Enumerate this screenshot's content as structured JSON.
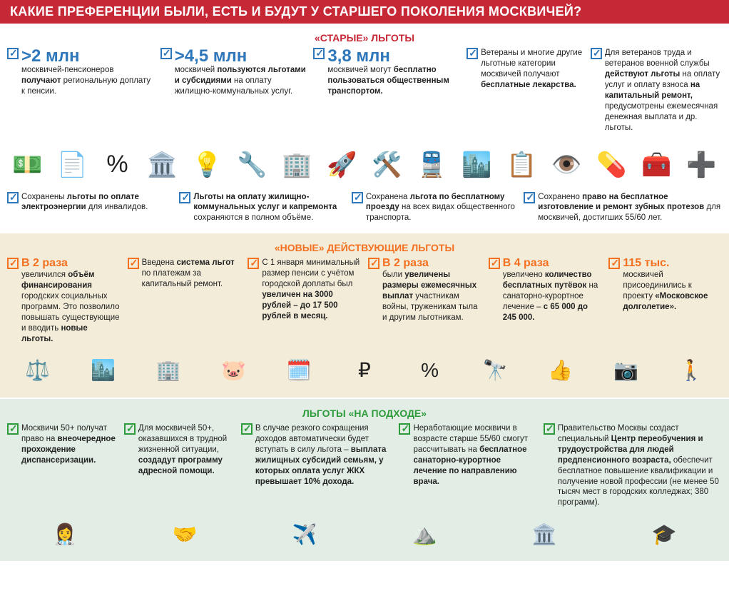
{
  "colors": {
    "header_bg": "#c72836",
    "blue": "#2e77bb",
    "orange": "#f37021",
    "green": "#2e9b3b",
    "section_white": "#ffffff",
    "section_tan": "#f3ecd9",
    "section_mint": "#e2ede5"
  },
  "header": "КАКИЕ ПРЕФЕРЕНЦИИ БЫЛИ, ЕСТЬ И БУДУТ У СТАРШЕГО ПОКОЛЕНИЯ МОСКВИЧЕЙ?",
  "sections": {
    "old": {
      "title": "«СТАРЫЕ» ЛЬГОТЫ",
      "top_items": [
        {
          "stat": ">2 млн",
          "text_before": "москвичей-пенсионеров ",
          "bold": "получают",
          "text_after": " региональную доплату к пенсии."
        },
        {
          "stat": ">4,5 млн",
          "text_before": "москвичей ",
          "bold": "пользуются льготами и субсидиями",
          "text_after": " на оплату жилищно-коммунальных услуг."
        },
        {
          "stat": "3,8 млн",
          "text_before": "москвичей могут ",
          "bold": "бесплатно пользоваться общественным транспортом.",
          "text_after": ""
        },
        {
          "stat": "",
          "text_before": "Ветераны и многие другие льготные категории москвичей получают ",
          "bold": "бесплатные лекарства.",
          "text_after": ""
        },
        {
          "stat": "",
          "text_before": "Для ветеранов труда и ветеранов военной службы ",
          "bold": "действуют льготы",
          "text_after": " на оплату услуг и оплату взноса ",
          "bold2": "на капитальный ремонт,",
          "text_after2": " предусмотрены ежемесячная денежная выплата и др. льготы."
        }
      ],
      "bottom_items": [
        {
          "text_before": "Сохранены ",
          "bold": "льготы по оплате электроэнергии",
          "text_after": " для инвалидов."
        },
        {
          "text_before": "",
          "bold": "Льготы на оплату жилищно-коммунальных услуг и капремонта",
          "text_after": " сохраняются в полном объёме."
        },
        {
          "text_before": "Сохранена ",
          "bold": "льгота по бесплатному проезду",
          "text_after": " на всех видах общественного транспорта."
        },
        {
          "text_before": "Сохранено ",
          "bold": "право на бесплатное изготовление и ремонт зубных протезов",
          "text_after": " для москвичей, достигших 55/60 лет."
        }
      ],
      "icons": [
        "💵",
        "📄",
        "%",
        "🏛️",
        "💡",
        "🔧",
        "🏢",
        "🚀",
        "🛠️",
        "🚆",
        "🏙️",
        "📋",
        "👁️",
        "💊",
        "🧰",
        "➕"
      ]
    },
    "new": {
      "title": "«НОВЫЕ» ДЕЙСТВУЮЩИЕ ЛЬГОТЫ",
      "items": [
        {
          "stat": "В 2 раза",
          "text_before": "увеличился ",
          "bold": "объём финансирования",
          "text_after": " городских социальных программ. Это позволило повышать существующие и вводить ",
          "bold2": "новые льготы."
        },
        {
          "stat": "",
          "text_before": "Введена ",
          "bold": "система льгот",
          "text_after": " по платежам за капитальный ремонт."
        },
        {
          "stat": "",
          "text_before": "С 1 января минимальный размер пенсии с учётом городской доплаты был ",
          "bold": "увеличен на 3000 рублей – до 17 500 рублей в месяц.",
          "text_after": ""
        },
        {
          "stat": "В 2 раза",
          "text_before": "были ",
          "bold": "увеличены размеры ежемесячных выплат",
          "text_after": " участникам войны, труженикам тыла и другим льготникам."
        },
        {
          "stat": "В 4 раза",
          "text_before": "увеличено ",
          "bold": "количество бесплатных путёвок",
          "text_after": " на санаторно-курортное лечение – ",
          "bold2": "с 65 000 до 245 000."
        },
        {
          "stat": "115 тыс.",
          "text_before": "москвичей присоединились к проекту ",
          "bold": "«Московское долголетие».",
          "text_after": ""
        }
      ],
      "icons": [
        "⚖️",
        "🏙️",
        "🏢",
        "🐷",
        "🗓️",
        "₽",
        "%",
        "🔭",
        "👍",
        "📷",
        "🚶"
      ]
    },
    "upcoming": {
      "title": "ЛЬГОТЫ «НА ПОДХОДЕ»",
      "items": [
        {
          "text_before": "Москвичи 50+ получат право на ",
          "bold": "внеочередное прохождение диспансеризации.",
          "text_after": ""
        },
        {
          "text_before": "Для москвичей 50+, оказавшихся в трудной жизненной ситуации, ",
          "bold": "создадут программу адресной помощи.",
          "text_after": ""
        },
        {
          "text_before": "В случае резкого сокращения доходов автоматически будет вступать в силу льгота – ",
          "bold": "выплата жилищных субсидий семьям, у которых оплата услуг ЖКХ превышает 10% дохода.",
          "text_after": ""
        },
        {
          "text_before": "Неработающие москвичи в возрасте старше 55/60 смогут рассчитывать на ",
          "bold": "бесплатное санаторно-курортное лечение по направлению врача.",
          "text_after": ""
        },
        {
          "text_before": "Правительство Москвы создаст специальный ",
          "bold": "Центр переобучения и трудоустройства для людей предпенсионного возраста,",
          "text_after": " обеспечит бесплатное повышение квалификации и получение новой профессии (не менее 50 тысяч мест в городских колледжах; 380 программ)."
        }
      ],
      "icons": [
        "👩‍⚕️",
        "🤝",
        "✈️",
        "⛰️",
        "🏛️",
        "🎓"
      ]
    }
  }
}
